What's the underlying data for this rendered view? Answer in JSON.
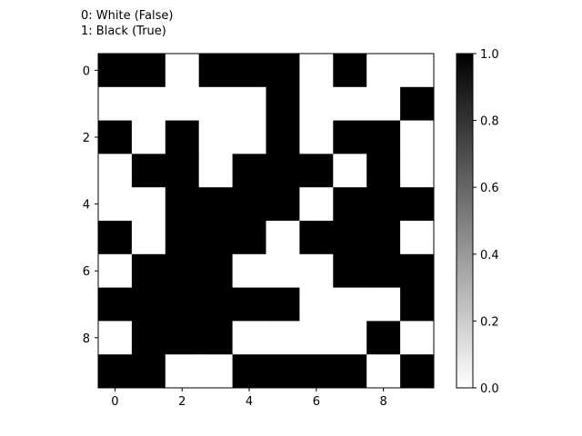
{
  "legend_text": {
    "line0": "0: White (False)",
    "line1": "1: Black (True)"
  },
  "chart_data": {
    "type": "heatmap",
    "colormap": "Greys",
    "x_ticks": [
      "0",
      "2",
      "4",
      "6",
      "8"
    ],
    "y_ticks": [
      "0",
      "2",
      "4",
      "6",
      "8"
    ],
    "colorbar_ticks": [
      "0.0",
      "0.2",
      "0.4",
      "0.6",
      "0.8",
      "1.0"
    ],
    "colorbar_range": [
      0,
      1
    ],
    "matrix": [
      [
        1,
        1,
        0,
        1,
        1,
        1,
        0,
        1,
        0,
        0
      ],
      [
        0,
        0,
        0,
        0,
        0,
        1,
        0,
        0,
        0,
        1
      ],
      [
        1,
        0,
        1,
        0,
        0,
        1,
        0,
        1,
        1,
        0
      ],
      [
        0,
        1,
        1,
        0,
        1,
        1,
        1,
        0,
        1,
        0
      ],
      [
        0,
        0,
        1,
        1,
        1,
        1,
        0,
        1,
        1,
        1
      ],
      [
        1,
        0,
        1,
        1,
        1,
        0,
        1,
        1,
        1,
        0
      ],
      [
        0,
        1,
        1,
        1,
        0,
        0,
        0,
        1,
        1,
        1
      ],
      [
        1,
        1,
        1,
        1,
        1,
        1,
        0,
        0,
        0,
        1
      ],
      [
        0,
        1,
        1,
        1,
        0,
        0,
        0,
        0,
        1,
        0
      ],
      [
        1,
        1,
        0,
        0,
        1,
        1,
        1,
        1,
        0,
        1
      ]
    ]
  },
  "colors": {
    "true": "#000000",
    "false": "#ffffff",
    "axis": "#000000"
  }
}
